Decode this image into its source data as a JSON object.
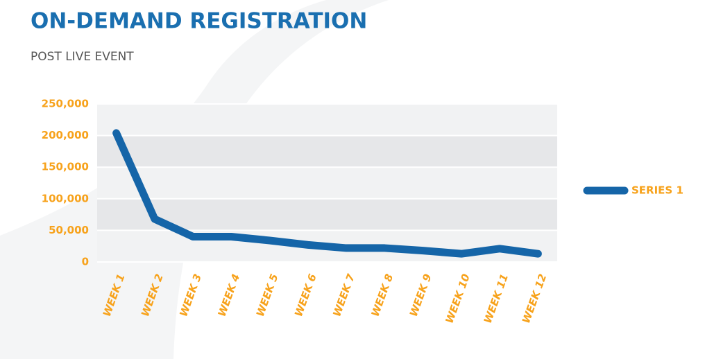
{
  "chart_data": {
    "type": "line",
    "title": "ON-DEMAND REGISTRATION",
    "subtitle": "POST LIVE EVENT",
    "categories": [
      "WEEK 1",
      "WEEK 2",
      "WEEK 3",
      "WEEK 4",
      "WEEK 5",
      "WEEK 6",
      "WEEK 7",
      "WEEK 8",
      "WEEK 9",
      "WEEK 10",
      "WEEK 11",
      "WEEK 12"
    ],
    "series": [
      {
        "name": "SERIES 1",
        "color": "#1565a8",
        "values": [
          204000,
          68000,
          40000,
          40000,
          34000,
          27000,
          22000,
          22000,
          18000,
          13000,
          21000,
          13000
        ]
      }
    ],
    "ylim": [
      0,
      250000
    ],
    "yticks": [
      0,
      {
        "value": 50000,
        "label": "50,000"
      },
      {
        "value": 100000,
        "label": "100,000"
      },
      {
        "value": 150000,
        "label": "150,000"
      },
      {
        "value": 200000,
        "label": "200,000"
      },
      {
        "value": 250000,
        "label": "250,000"
      }
    ],
    "grid": true,
    "legend": "right"
  }
}
